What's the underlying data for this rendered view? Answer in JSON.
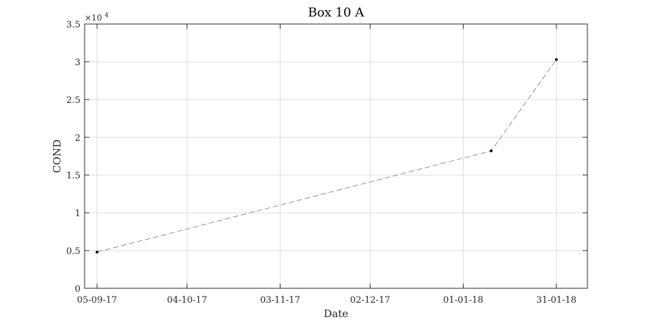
{
  "chart_data": {
    "type": "line",
    "title": "Box 10 A",
    "xlabel": "Date",
    "ylabel": "COND",
    "y_multiplier": {
      "base": "×10",
      "exponent": "4"
    },
    "x_ticks": [
      {
        "date": "2017-09-05",
        "label": "05-09-17"
      },
      {
        "date": "2017-10-04",
        "label": "04-10-17"
      },
      {
        "date": "2017-11-03",
        "label": "03-11-17"
      },
      {
        "date": "2017-12-02",
        "label": "02-12-17"
      },
      {
        "date": "2018-01-01",
        "label": "01-01-18"
      },
      {
        "date": "2018-01-31",
        "label": "31-01-18"
      }
    ],
    "y_ticks": [
      {
        "value": 0,
        "label": "0"
      },
      {
        "value": 5000,
        "label": "0.5"
      },
      {
        "value": 10000,
        "label": "1"
      },
      {
        "value": 15000,
        "label": "1.5"
      },
      {
        "value": 20000,
        "label": "2"
      },
      {
        "value": 25000,
        "label": "2.5"
      },
      {
        "value": 30000,
        "label": "3"
      },
      {
        "value": 35000,
        "label": "3.5"
      }
    ],
    "xlim": [
      "2017-09-01",
      "2018-02-10"
    ],
    "ylim": [
      0,
      35000
    ],
    "grid": true,
    "series": [
      {
        "x": [
          "2017-09-05",
          "2018-01-10",
          "2018-01-31"
        ],
        "y": [
          4800,
          18200,
          30300
        ],
        "line_style": "dashed",
        "line_color": "#8c8c8c",
        "marker_color": "#000000"
      }
    ]
  }
}
